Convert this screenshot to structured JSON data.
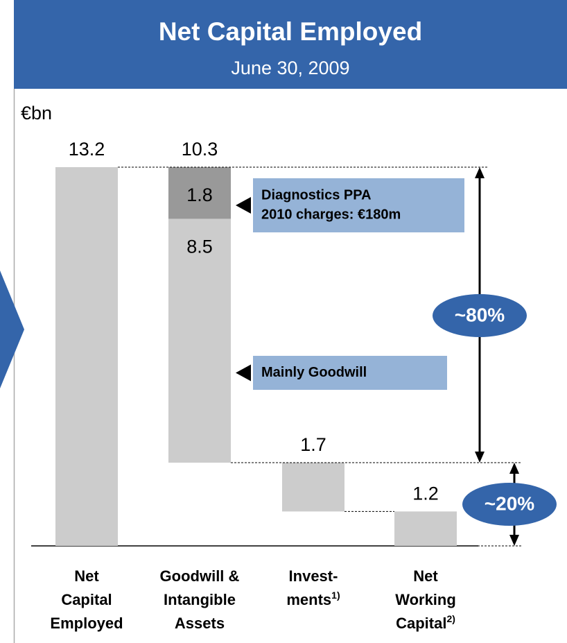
{
  "chart_data": {
    "type": "waterfall",
    "title": "Net Capital Employed",
    "subtitle": "June 30, 2009",
    "unit": "€bn",
    "categories": [
      {
        "lines": [
          "Net",
          "Capital",
          "Employed"
        ]
      },
      {
        "lines": [
          "Goodwill &",
          "Intangible",
          "Assets"
        ]
      },
      {
        "lines": [
          "Invest-",
          "ments"
        ],
        "note": "1)"
      },
      {
        "lines": [
          "Net",
          "Working",
          "Capital"
        ],
        "note": "2)"
      }
    ],
    "values": [
      13.2,
      10.3,
      1.7,
      1.2
    ],
    "color": "#cccccc",
    "breakdown": {
      "index": 1,
      "values": [
        1.8,
        8.5
      ],
      "colors": [
        "#999999",
        "#cccccc"
      ]
    },
    "callouts": [
      {
        "segment": 0,
        "lines": [
          "Diagnostics PPA",
          "2010 charges: €180m"
        ]
      },
      {
        "segment": 1,
        "lines": [
          "Mainly Goodwill"
        ]
      }
    ],
    "shares": [
      "~80%",
      "~20%"
    ],
    "header_color": "#3465aa",
    "callout_color": "#95b3d7"
  }
}
